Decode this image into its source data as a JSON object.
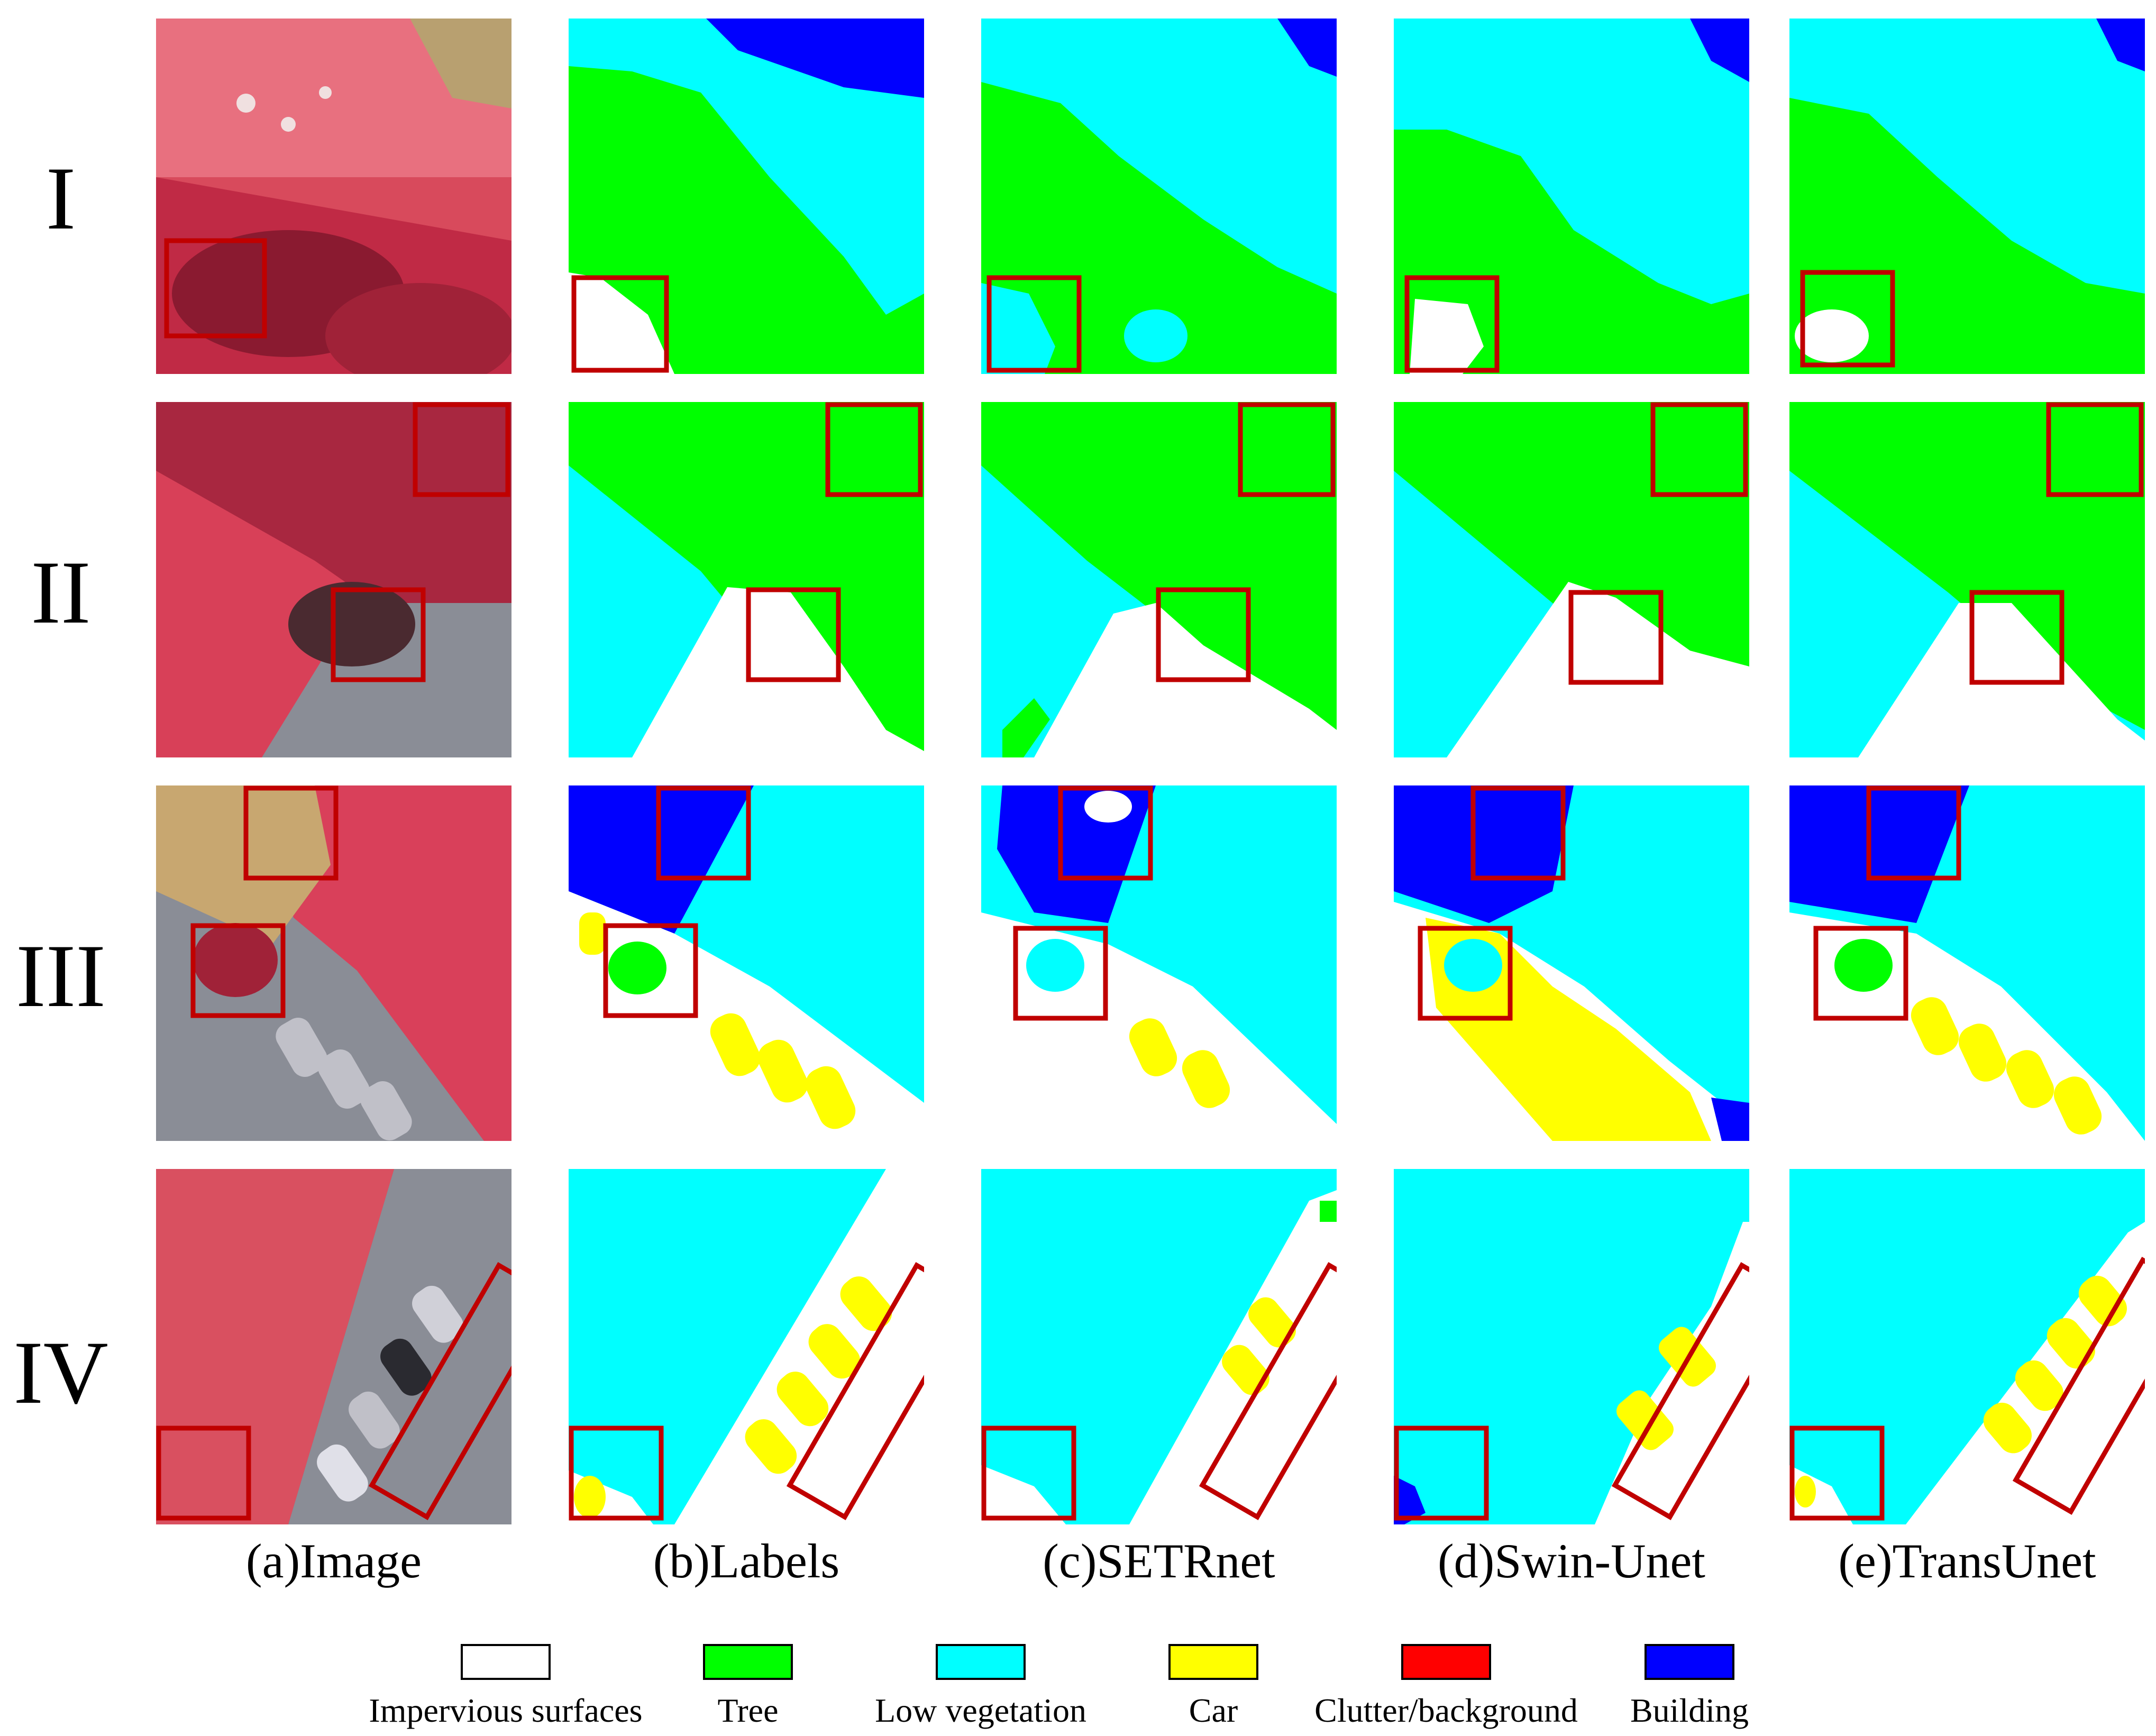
{
  "rows": [
    "I",
    "II",
    "III",
    "IV"
  ],
  "columns": [
    "(a)Image",
    "(b)Labels",
    "(c)SETRnet",
    "(d)Swin-Unet",
    "(e)TransUnet"
  ],
  "legend": [
    {
      "label": "Impervious surfaces",
      "color": "#ffffff"
    },
    {
      "label": "Tree",
      "color": "#00ff00"
    },
    {
      "label": "Low vegetation",
      "color": "#00ffff"
    },
    {
      "label": "Car",
      "color": "#ffff00"
    },
    {
      "label": "Clutter/background",
      "color": "#ff0000"
    },
    {
      "label": "Building",
      "color": "#0000ff"
    }
  ],
  "colors": {
    "impervious": "#ffffff",
    "tree": "#00ff00",
    "low_vegetation": "#00ffff",
    "car": "#ffff00",
    "clutter": "#ff0000",
    "building": "#0000ff",
    "highlight_box": "#c00000",
    "infrared_red": "#e8334f",
    "road_gray": "#8a8d96"
  }
}
